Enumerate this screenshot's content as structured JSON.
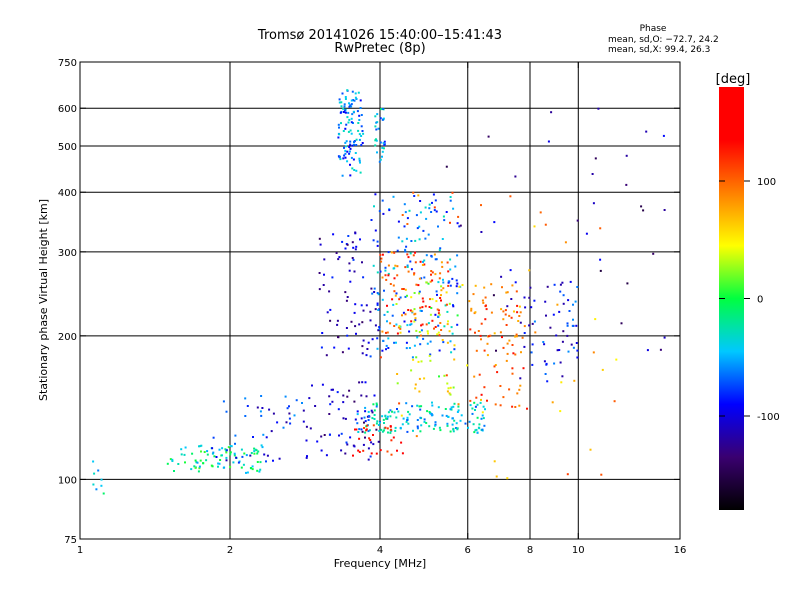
{
  "chart_data": {
    "type": "scatter",
    "title": "Tromsø 20141026 15:40:00–15:41:43",
    "subtitle": "RwPretec (8p)",
    "xlabel": "Frequency [MHz]",
    "ylabel": "Stationary phase Virtual Height [km]",
    "xscale": "log",
    "yscale": "log",
    "xlim": [
      1,
      16
    ],
    "ylim": [
      75,
      750
    ],
    "xticks": [
      1,
      2,
      4,
      6,
      8,
      10,
      16
    ],
    "xgrid": [
      2,
      4,
      6,
      8,
      10
    ],
    "yticks": [
      75,
      100,
      200,
      300,
      400,
      500,
      600,
      750
    ],
    "ygrid": [
      100,
      200,
      300,
      400,
      500,
      600
    ],
    "grid": true,
    "info": {
      "heading": "Phase",
      "line1": "mean, sd,O: −72.7, 24.2",
      "line2": "mean, sd,X:  99.4, 26.3"
    },
    "colorbar": {
      "label": "[deg]",
      "min": -180,
      "max": 180,
      "ticks": [
        100,
        0,
        -100
      ],
      "colors": [
        "#000000",
        "#3a0070",
        "#0000ff",
        "#00c8ff",
        "#00ff40",
        "#ffff00",
        "#ff8000",
        "#ff0000",
        "#ff0000"
      ]
    },
    "clusters": [
      {
        "f": [
          1.05,
          1.12
        ],
        "h": [
          90,
          112
        ],
        "phase": -40,
        "n": 8
      },
      {
        "f": [
          1.5,
          2.4
        ],
        "h": [
          103,
          118
        ],
        "phase": -20,
        "n": 90
      },
      {
        "f": [
          1.8,
          2.8
        ],
        "h": [
          108,
          150
        ],
        "phase": -90,
        "n": 45
      },
      {
        "f": [
          2.8,
          4.0
        ],
        "h": [
          110,
          160
        ],
        "phase": -110,
        "n": 70
      },
      {
        "f": [
          3.3,
          3.7
        ],
        "h": [
          430,
          660
        ],
        "phase": -60,
        "n": 110
      },
      {
        "f": [
          3.9,
          4.1
        ],
        "h": [
          460,
          600
        ],
        "phase": -50,
        "n": 30
      },
      {
        "f": [
          3.6,
          6.5
        ],
        "h": [
          125,
          145
        ],
        "phase": -40,
        "n": 160
      },
      {
        "f": [
          3.0,
          4.0
        ],
        "h": [
          180,
          330
        ],
        "phase": -110,
        "n": 80
      },
      {
        "f": [
          3.8,
          5.8
        ],
        "h": [
          180,
          400
        ],
        "phase": -60,
        "n": 170
      },
      {
        "f": [
          4.0,
          5.5
        ],
        "h": [
          200,
          300
        ],
        "phase": 110,
        "n": 90
      },
      {
        "f": [
          4.3,
          5.8
        ],
        "h": [
          150,
          260
        ],
        "phase": 40,
        "n": 60
      },
      {
        "f": [
          6.0,
          8.0
        ],
        "h": [
          140,
          260
        ],
        "phase": 100,
        "n": 90
      },
      {
        "f": [
          7.5,
          10.0
        ],
        "h": [
          160,
          260
        ],
        "phase": -90,
        "n": 60
      },
      {
        "f": [
          3.5,
          4.5
        ],
        "h": [
          112,
          130
        ],
        "phase": 140,
        "n": 30
      },
      {
        "f": [
          5.0,
          15.0
        ],
        "h": [
          180,
          600
        ],
        "phase": -120,
        "n": 40
      },
      {
        "f": [
          4.0,
          12.0
        ],
        "h": [
          100,
          400
        ],
        "phase": 80,
        "n": 50
      }
    ]
  }
}
